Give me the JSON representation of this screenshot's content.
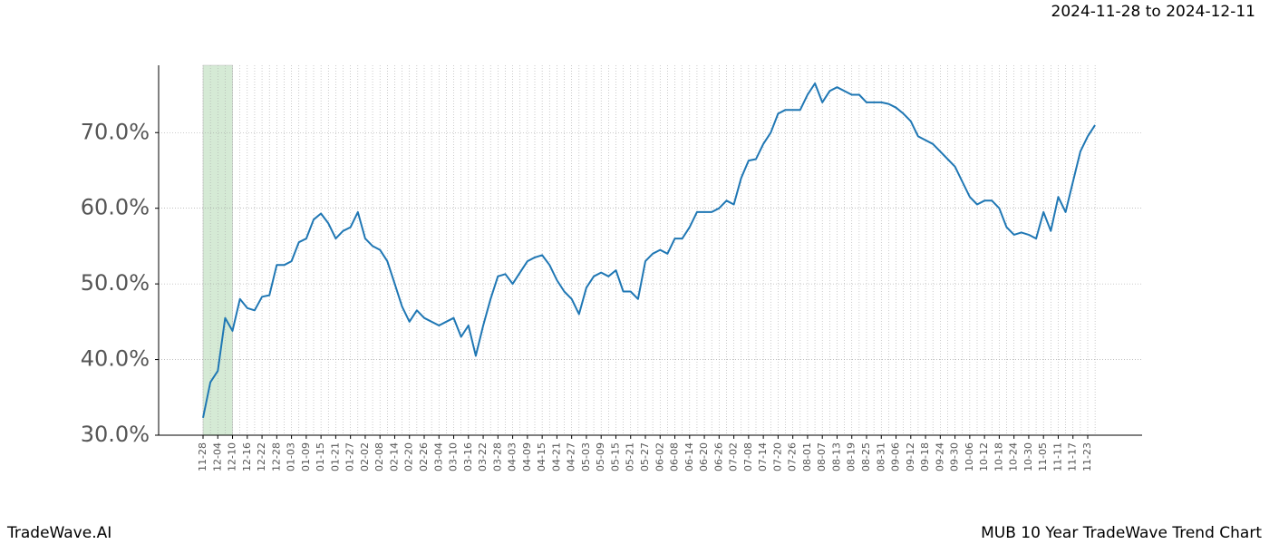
{
  "chart_data": {
    "type": "line",
    "subtitle": "2024-11-28 to 2024-12-11",
    "footer_left": "TradeWave.AI",
    "footer_right": "MUB 10 Year TradeWave Trend Chart",
    "categories": [
      "11-28",
      null,
      "12-04",
      null,
      "12-10",
      null,
      "12-16",
      null,
      "12-22",
      null,
      "12-28",
      null,
      "01-03",
      null,
      "01-09",
      null,
      "01-15",
      null,
      "01-21",
      null,
      "01-27",
      null,
      "02-02",
      null,
      "02-08",
      null,
      "02-14",
      null,
      "02-20",
      null,
      "02-26",
      null,
      "03-04",
      null,
      "03-10",
      null,
      "03-16",
      null,
      "03-22",
      null,
      "03-28",
      null,
      "04-03",
      null,
      "04-09",
      null,
      "04-15",
      null,
      "04-21",
      null,
      "04-27",
      null,
      "05-03",
      null,
      "05-09",
      null,
      "05-15",
      null,
      "05-21",
      null,
      "05-27",
      null,
      "06-02",
      null,
      "06-08",
      null,
      "06-14",
      null,
      "06-20",
      null,
      "06-26",
      null,
      "07-02",
      null,
      "07-08",
      null,
      "07-14",
      null,
      "07-20",
      null,
      "07-26",
      null,
      "08-01",
      null,
      "08-07",
      null,
      "08-13",
      null,
      "08-19",
      null,
      "08-25",
      null,
      "08-31",
      null,
      "09-06",
      null,
      "09-12",
      null,
      "09-18",
      null,
      "09-24",
      null,
      "09-30",
      null,
      "10-06",
      null,
      "10-12",
      null,
      "10-18",
      null,
      "10-24",
      null,
      "10-30",
      null,
      "11-05",
      null,
      "11-11",
      null,
      "11-17",
      null,
      "11-23",
      null
    ],
    "series": [
      {
        "color": "#1f77b4",
        "values": [
          32.3,
          37,
          38.5,
          45.5,
          43.8,
          48,
          46.8,
          46.5,
          48.3,
          48.5,
          52.5,
          52.5,
          53,
          55.5,
          56,
          58.5,
          59.3,
          58,
          56,
          57,
          57.5,
          59.5,
          56,
          55,
          54.5,
          53,
          50,
          47,
          45,
          46.5,
          45.5,
          45,
          44.5,
          45,
          45.5,
          43,
          44.5,
          40.5,
          44.5,
          48,
          51,
          51.3,
          50,
          51.5,
          53,
          53.5,
          53.8,
          52.5,
          50.5,
          49,
          48,
          46,
          49.5,
          51,
          51.5,
          51,
          51.8,
          49,
          49,
          48,
          53,
          54,
          54.5,
          54,
          56,
          56,
          57.5,
          59.5,
          59.5,
          59.5,
          60,
          61,
          60.5,
          64,
          66.3,
          66.5,
          68.5,
          70,
          72.5,
          73,
          73,
          73,
          75,
          76.5,
          74,
          75.5,
          76,
          75.5,
          75,
          75,
          74,
          74,
          74,
          73.8,
          73.3,
          72.5,
          71.5,
          69.5,
          69,
          68.5,
          67.5,
          66.5,
          65.5,
          63.5,
          61.5,
          60.5,
          61,
          61,
          60,
          57.5,
          56.5,
          56.8,
          56.5,
          56,
          59.5,
          57,
          61.5,
          59.5,
          63.5,
          67.5,
          69.5,
          71
        ]
      }
    ],
    "ylim": [
      30,
      78.9
    ],
    "yticks": [
      {
        "value": 30,
        "label": "30.0%"
      },
      {
        "value": 40,
        "label": "40.0%"
      },
      {
        "value": 50,
        "label": "50.0%"
      },
      {
        "value": 60,
        "label": "60.0%"
      },
      {
        "value": 70,
        "label": "70.0%"
      }
    ],
    "grid": true,
    "shade": [
      0,
      4
    ],
    "shade_color": "#d5ead5"
  }
}
